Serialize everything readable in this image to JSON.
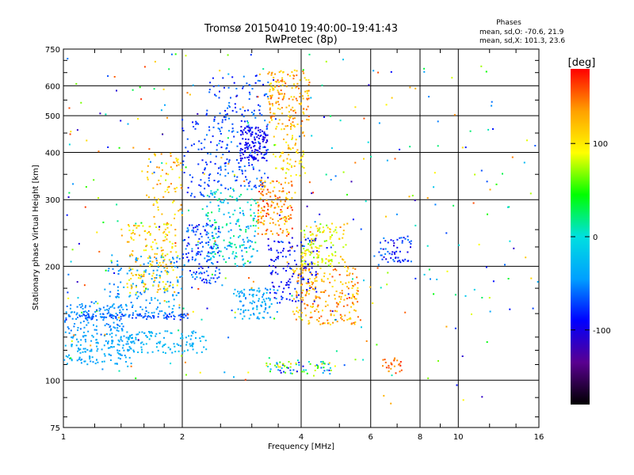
{
  "chart_data": {
    "type": "scatter",
    "title": "Tromsø 20150410 19:40:00–19:41:43",
    "subtitle": "RwPretec (8p)",
    "xlabel": "Frequency [MHz]",
    "ylabel": "Stationary phase Virtual Height [km]",
    "x_scale": "log",
    "y_scale": "log",
    "xlim": [
      1,
      16
    ],
    "ylim": [
      75,
      750
    ],
    "x_ticks": [
      1,
      2,
      4,
      6,
      8,
      10,
      16
    ],
    "y_ticks": [
      75,
      100,
      200,
      300,
      400,
      500,
      600,
      750
    ],
    "grid": true,
    "phases_note": {
      "header": "Phases",
      "line1": "mean, sd,O: -70.6, 21.9",
      "line2": "mean, sd,X: 101.3, 23.6"
    },
    "colorbar": {
      "label": "[deg]",
      "range": [
        -180,
        180
      ],
      "ticks": [
        100,
        0,
        -100
      ],
      "colormap": "rainbow",
      "colors": [
        "#000000",
        "#5a0090",
        "#0000ff",
        "#00a0ff",
        "#00e0e0",
        "#00ff00",
        "#ffff00",
        "#ffa000",
        "#ff0000"
      ]
    },
    "series": [
      {
        "clusters": [
          {
            "f": [
              1.0,
              1.5
            ],
            "h": [
              110,
              135
            ],
            "phase": [
              -50,
              -30
            ],
            "n": 160
          },
          {
            "f": [
              1.0,
              1.45
            ],
            "h": [
              135,
              160
            ],
            "phase": [
              -60,
              -40
            ],
            "n": 120
          },
          {
            "f": [
              1.1,
              2.1
            ],
            "h": [
              145,
              150
            ],
            "phase": [
              -80,
              -55
            ],
            "n": 90
          },
          {
            "f": [
              1.45,
              2.3
            ],
            "h": [
              118,
              135
            ],
            "phase": [
              -45,
              -20
            ],
            "n": 110
          },
          {
            "f": [
              1.3,
              2.0
            ],
            "h": [
              150,
              215
            ],
            "phase": [
              -60,
              -30
            ],
            "n": 150
          },
          {
            "f": [
              1.45,
              1.95
            ],
            "h": [
              170,
              260
            ],
            "phase": [
              80,
              140
            ],
            "n": 160
          },
          {
            "f": [
              1.6,
              2.0
            ],
            "h": [
              260,
              400
            ],
            "phase": [
              90,
              150
            ],
            "n": 70
          },
          {
            "f": [
              2.0,
              2.5
            ],
            "h": [
              180,
              260
            ],
            "phase": [
              -100,
              -40
            ],
            "n": 140
          },
          {
            "f": [
              2.3,
              3.1
            ],
            "h": [
              200,
              320
            ],
            "phase": [
              -60,
              30
            ],
            "n": 180
          },
          {
            "f": [
              2.3,
              3.3
            ],
            "h": [
              320,
              640
            ],
            "phase": [
              -90,
              -50
            ],
            "n": 220
          },
          {
            "f": [
              2.8,
              3.3
            ],
            "h": [
              380,
              470
            ],
            "phase": [
              -110,
              -85
            ],
            "n": 120
          },
          {
            "f": [
              2.0,
              2.3
            ],
            "h": [
              300,
              500
            ],
            "phase": [
              -90,
              -60
            ],
            "n": 50
          },
          {
            "f": [
              3.1,
              3.8
            ],
            "h": [
              240,
              340
            ],
            "phase": [
              100,
              170
            ],
            "n": 150
          },
          {
            "f": [
              3.3,
              4.2
            ],
            "h": [
              480,
              660
            ],
            "phase": [
              100,
              160
            ],
            "n": 150
          },
          {
            "f": [
              3.4,
              4.1
            ],
            "h": [
              340,
              480
            ],
            "phase": [
              80,
              140
            ],
            "n": 80
          },
          {
            "f": [
              3.8,
              5.6
            ],
            "h": [
              140,
              200
            ],
            "phase": [
              100,
              160
            ],
            "n": 220
          },
          {
            "f": [
              4.0,
              5.2
            ],
            "h": [
              200,
              260
            ],
            "phase": [
              60,
              130
            ],
            "n": 130
          },
          {
            "f": [
              3.3,
              4.4
            ],
            "h": [
              160,
              240
            ],
            "phase": [
              -110,
              -70
            ],
            "n": 120
          },
          {
            "f": [
              2.7,
              3.5
            ],
            "h": [
              145,
              175
            ],
            "phase": [
              -60,
              -20
            ],
            "n": 100
          },
          {
            "f": [
              3.2,
              4.8
            ],
            "h": [
              104,
              112
            ],
            "phase": [
              -110,
              120
            ],
            "n": 70
          },
          {
            "f": [
              6.3,
              7.6
            ],
            "h": [
              205,
              240
            ],
            "phase": [
              -110,
              -50
            ],
            "n": 60
          },
          {
            "f": [
              6.4,
              7.2
            ],
            "h": [
              104,
              115
            ],
            "phase": [
              130,
              170
            ],
            "n": 25
          },
          {
            "f": [
              6.0,
              12.0
            ],
            "h": [
              85,
              680
            ],
            "phase": [
              -120,
              160
            ],
            "n": 80
          },
          {
            "f": [
              12.0,
              16.0
            ],
            "h": [
              150,
              560
            ],
            "phase": [
              -120,
              160
            ],
            "n": 25
          },
          {
            "f": [
              1.0,
              6.0
            ],
            "h": [
              100,
              740
            ],
            "phase": [
              -120,
              170
            ],
            "n": 260
          }
        ]
      }
    ]
  }
}
